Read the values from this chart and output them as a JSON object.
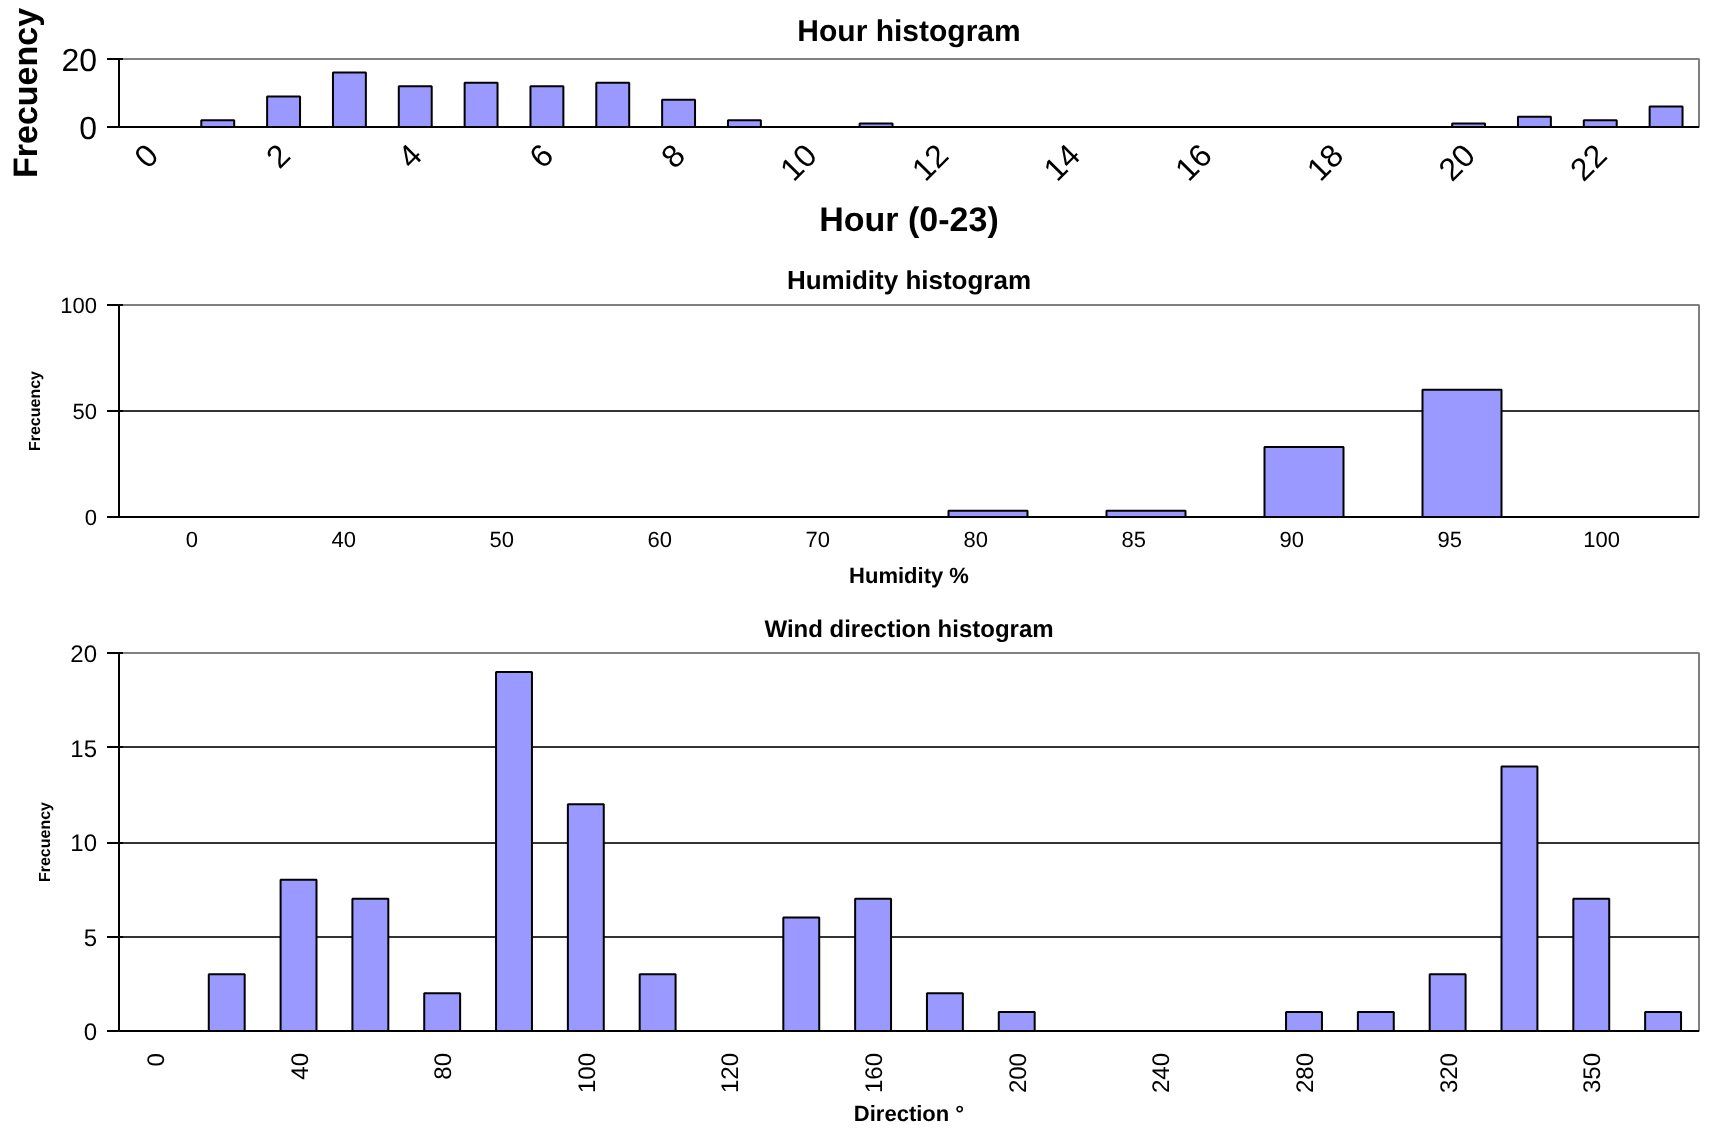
{
  "chart_data": [
    {
      "type": "bar",
      "title": "Hour histogram",
      "xlabel": "Hour (0-23)",
      "ylabel": "Frecuency",
      "categories": [
        "0",
        null,
        "2",
        null,
        "4",
        null,
        "6",
        null,
        "8",
        null,
        "10",
        null,
        "12",
        null,
        "14",
        null,
        "16",
        null,
        "18",
        null,
        "20",
        null,
        "22",
        null
      ],
      "series": [
        {
          "color": "#9999ff",
          "values": [
            0,
            2,
            9,
            16,
            12,
            13,
            12,
            13,
            8,
            2,
            0,
            1,
            0,
            0,
            0,
            0,
            0,
            0,
            0,
            0,
            1,
            3,
            2,
            6
          ]
        }
      ],
      "ylim": [
        0,
        20
      ],
      "yticks": [
        0,
        20
      ]
    },
    {
      "type": "bar",
      "title": "Humidity histogram",
      "xlabel": "Humidity %",
      "ylabel": "Frecuency",
      "categories": [
        "0",
        "40",
        "50",
        "60",
        "70",
        "80",
        "85",
        "90",
        "95",
        "100"
      ],
      "series": [
        {
          "color": "#9999ff",
          "values": [
            0,
            0,
            0,
            0,
            0,
            3,
            3,
            33,
            60,
            0
          ]
        }
      ],
      "ylim": [
        0,
        100
      ],
      "yticks": [
        0,
        50,
        100
      ],
      "grid": "y"
    },
    {
      "type": "bar",
      "title": "Wind direction histogram",
      "xlabel": "Direction °",
      "ylabel": "Frecuency",
      "categories": [
        "0",
        null,
        "40",
        null,
        "80",
        null,
        "100",
        null,
        "120",
        null,
        "160",
        null,
        "200",
        null,
        "240",
        null,
        "280",
        null,
        "320",
        null,
        "350",
        null
      ],
      "series": [
        {
          "color": "#9999ff",
          "values": [
            0,
            3,
            8,
            7,
            2,
            19,
            12,
            3,
            0,
            6,
            7,
            2,
            1,
            0,
            0,
            0,
            1,
            1,
            3,
            14,
            7,
            1
          ]
        }
      ],
      "ylim": [
        0,
        20
      ],
      "yticks": [
        0,
        5,
        10,
        15,
        20
      ],
      "grid": "y"
    }
  ]
}
